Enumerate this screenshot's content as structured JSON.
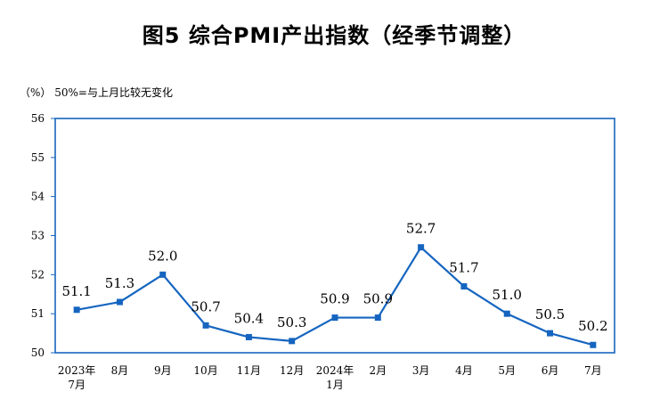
{
  "title": "图5  综合PMI产出指数（经季节调整）",
  "unit_note": "（%）  50%=与上月比较无变化",
  "colors": {
    "series": "#1565C0",
    "frame": "#1565C0"
  },
  "chart_data": {
    "type": "line",
    "title": "图5  综合PMI产出指数（经季节调整）",
    "xlabel": "",
    "ylabel": "（%）",
    "ylim": [
      50,
      56
    ],
    "yticks": [
      50,
      51,
      52,
      53,
      54,
      55,
      56
    ],
    "grid": false,
    "categories": [
      [
        "2023年",
        "7月"
      ],
      [
        "8月"
      ],
      [
        "9月"
      ],
      [
        "10月"
      ],
      [
        "11月"
      ],
      [
        "12月"
      ],
      [
        "2024年",
        "1月"
      ],
      [
        "2月"
      ],
      [
        "3月"
      ],
      [
        "4月"
      ],
      [
        "5月"
      ],
      [
        "6月"
      ],
      [
        "7月"
      ]
    ],
    "series": [
      {
        "values": [
          51.1,
          51.3,
          52.0,
          50.7,
          50.4,
          50.3,
          50.9,
          50.9,
          52.7,
          51.7,
          51.0,
          50.5,
          50.2
        ],
        "labels": [
          "51.1",
          "51.3",
          "52.0",
          "50.7",
          "50.4",
          "50.3",
          "50.9",
          "50.9",
          "52.7",
          "51.7",
          "51.0",
          "50.5",
          "50.2"
        ]
      }
    ]
  }
}
